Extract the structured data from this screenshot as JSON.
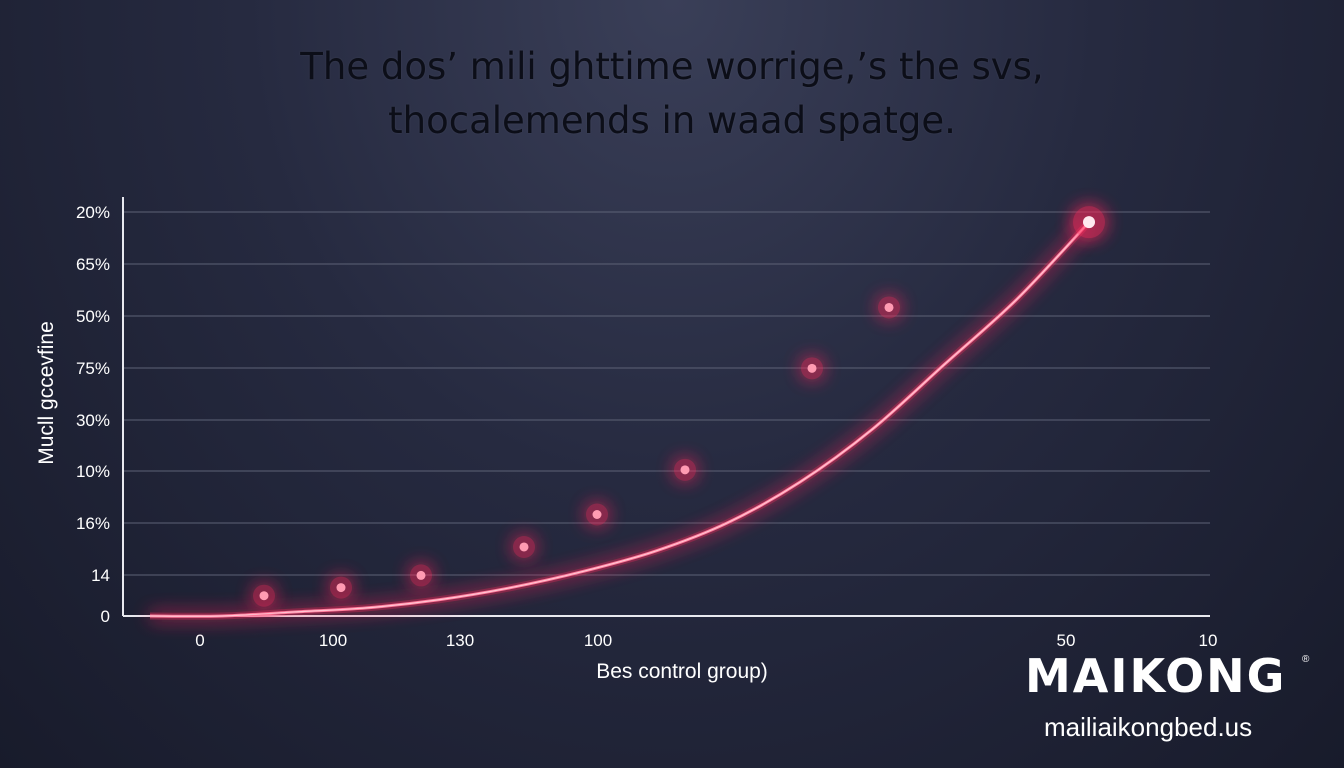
{
  "title": {
    "line1": "The dos’ mili ghttime worrige,’s the svs,",
    "line2": "thocalemends in waad spatge."
  },
  "brand": {
    "name": "MAIKONG",
    "mark": "®",
    "url": "mailiaikongbed.us"
  },
  "colors": {
    "accent": "#ff2a5c",
    "grid": "#5d6276",
    "axis": "#e8e9ef",
    "text": "#ffffff"
  },
  "chart_data": {
    "type": "scatter",
    "xlabel": "Bes control group)",
    "ylabel": "Mucll gccevfine",
    "x_tick_labels": [
      "0",
      "100",
      "130",
      "100",
      "50",
      "10"
    ],
    "y_tick_labels": [
      "20%",
      "65%",
      "50%",
      "75%",
      "30%",
      "10%",
      "16%",
      "14",
      "0"
    ],
    "grid": true,
    "legend": "none",
    "points_level": [
      0.05,
      0.07,
      0.1,
      0.17,
      0.25,
      0.36,
      0.61,
      0.76,
      0.97
    ],
    "curve_level": [
      0.0,
      0.0,
      0.01,
      0.02,
      0.04,
      0.07,
      0.11,
      0.16,
      0.23,
      0.33,
      0.46,
      0.62,
      0.78,
      0.97
    ]
  }
}
